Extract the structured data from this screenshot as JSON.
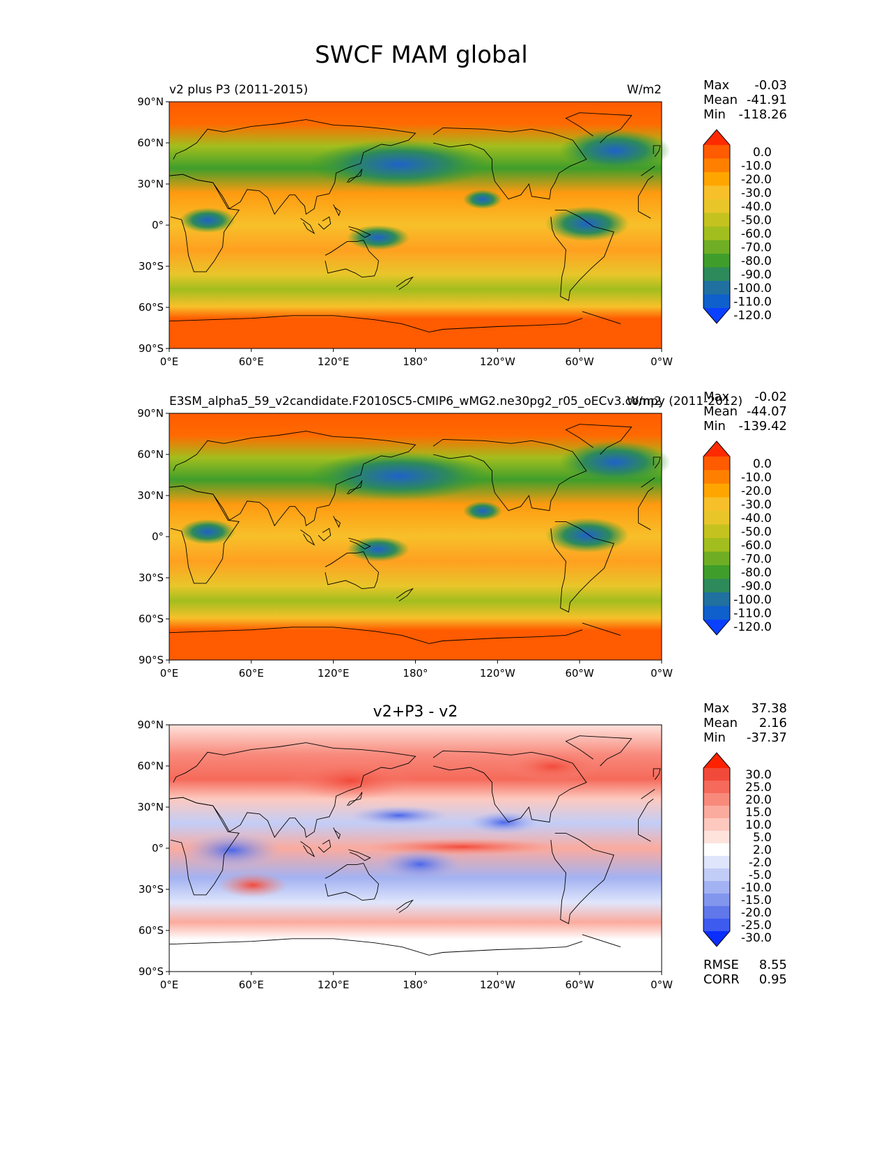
{
  "chart_data": {
    "type": "heatmap",
    "title": "SWCF MAM global",
    "x_ticks": [
      "0°E",
      "60°E",
      "120°E",
      "180°",
      "120°W",
      "60°W",
      "0°W"
    ],
    "y_ticks": [
      "90°N",
      "60°N",
      "30°N",
      "0°",
      "30°S",
      "60°S",
      "90°S"
    ],
    "panels": [
      {
        "id": "test",
        "title_left": "v2 plus P3 (2011-2015)",
        "title_center": "",
        "title_right": "W/m2",
        "stats": {
          "max_label": "Max",
          "max": "-0.03",
          "mean_label": "Mean",
          "mean": "-41.91",
          "min_label": "Min",
          "min": "-118.26"
        },
        "colorbar_ticks": [
          "0.0",
          "-10.0",
          "-20.0",
          "-30.0",
          "-40.0",
          "-50.0",
          "-60.0",
          "-70.0",
          "-80.0",
          "-90.0",
          "-100.0",
          "-110.0",
          "-120.0"
        ],
        "colorbar_colors": [
          "#ff2a00",
          "#ff5b00",
          "#ff8000",
          "#ffa500",
          "#f7c02a",
          "#e8c62a",
          "#c4c21e",
          "#a2be1e",
          "#6fae24",
          "#3f9e2b",
          "#2d8a5a",
          "#2070a0",
          "#0f5fcc",
          "#0a40ff"
        ]
      },
      {
        "id": "reference",
        "title_left": "E3SM_alpha5_59_v2candidate.F2010SC5-CMIP6_wMG2.ne30pg2_r05_oECv3.compy (2011-2012)",
        "title_center": "",
        "title_right": "W/m2",
        "stats": {
          "max_label": "Max",
          "max": "-0.02",
          "mean_label": "Mean",
          "mean": "-44.07",
          "min_label": "Min",
          "min": "-139.42"
        },
        "colorbar_ticks": [
          "0.0",
          "-10.0",
          "-20.0",
          "-30.0",
          "-40.0",
          "-50.0",
          "-60.0",
          "-70.0",
          "-80.0",
          "-90.0",
          "-100.0",
          "-110.0",
          "-120.0"
        ],
        "colorbar_colors": [
          "#ff2a00",
          "#ff5b00",
          "#ff8000",
          "#ffa500",
          "#f7c02a",
          "#e8c62a",
          "#c4c21e",
          "#a2be1e",
          "#6fae24",
          "#3f9e2b",
          "#2d8a5a",
          "#2070a0",
          "#0f5fcc",
          "#0a40ff"
        ]
      },
      {
        "id": "diff",
        "title_left": "",
        "title_center": "v2+P3 - v2",
        "title_right": "",
        "stats": {
          "max_label": "Max",
          "max": "37.38",
          "mean_label": "Mean",
          "mean": "2.16",
          "min_label": "Min",
          "min": "-37.37"
        },
        "colorbar_ticks": [
          "30.0",
          "25.0",
          "20.0",
          "15.0",
          "10.0",
          "5.0",
          "2.0",
          "-2.0",
          "-5.0",
          "-10.0",
          "-15.0",
          "-20.0",
          "-25.0",
          "-30.0"
        ],
        "colorbar_colors": [
          "#ff2200",
          "#f24a3a",
          "#f56a5a",
          "#f88a7c",
          "#fbab9e",
          "#fdc9bf",
          "#fee3dd",
          "#ffffff",
          "#dfe5fb",
          "#c2cdf7",
          "#a3b2f2",
          "#8296ee",
          "#6078ea",
          "#3e5bf0",
          "#0a2eff"
        ],
        "rmse_label": "RMSE",
        "rmse": "8.55",
        "corr_label": "CORR",
        "corr": "0.95"
      }
    ]
  }
}
